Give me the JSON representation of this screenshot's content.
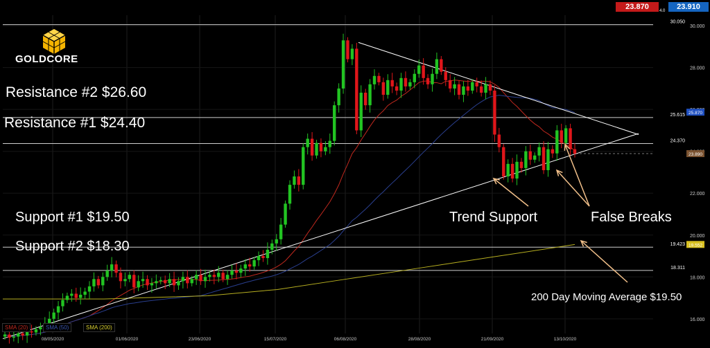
{
  "logo": {
    "text": "GOLDCORE"
  },
  "quotes": {
    "bid": "23.870",
    "ask": "23.910",
    "spread": "4.0"
  },
  "annotations": {
    "resistance2": "Resistance #2 $26.60",
    "resistance1": "Resistance #1 $24.40",
    "support1": "Support #1 $19.50",
    "support2": "Support #2 $18.30",
    "trend_support": "Trend Support",
    "false_breaks": "False Breaks",
    "ma200": "200 Day Moving Average $19.50"
  },
  "legend": {
    "sma20": "SMA (20)",
    "sma50": "SMA (50)",
    "sma200": "SMA (200)"
  },
  "colors": {
    "up": "#22c422",
    "down": "#e0161a",
    "sma20": "#c0281e",
    "sma50": "#2a3f8f",
    "sma200": "#b8b020",
    "arrow": "#f2c08a",
    "line": "#ffffff"
  },
  "chart_data": {
    "type": "candlestick",
    "title": "",
    "ylim": [
      15.3,
      30.5
    ],
    "y_ticks": [
      16,
      18,
      20,
      22,
      24,
      26,
      28,
      30
    ],
    "x_ticks": [
      "08/05/2020",
      "01/06/2020",
      "23/06/2020",
      "15/07/2020",
      "06/08/2020",
      "28/08/2020",
      "21/09/2020",
      "13/10/2020"
    ],
    "horizontal_levels": [
      {
        "label": "30.050",
        "value": 30.05
      },
      {
        "label": "25.615",
        "value": 25.615
      },
      {
        "label": "24.370",
        "value": 24.37
      },
      {
        "label": "19.423",
        "value": 19.423
      },
      {
        "label": "18.311",
        "value": 18.311
      }
    ],
    "price_tags": [
      {
        "label": "25.870",
        "value": 25.87,
        "color": "#1f4fbf"
      },
      {
        "label": "23.890",
        "value": 23.89,
        "color": "#7a5230"
      },
      {
        "label": "19.552",
        "value": 19.552,
        "color": "#d8c020"
      }
    ],
    "candles_close": [
      15.25,
      15.1,
      15.15,
      15.3,
      15.2,
      15.4,
      15.35,
      15.5,
      15.6,
      15.8,
      16.0,
      16.3,
      16.6,
      16.9,
      17.1,
      17.2,
      17.0,
      17.15,
      17.3,
      17.55,
      17.9,
      17.6,
      18.0,
      18.3,
      18.6,
      18.2,
      17.8,
      17.9,
      18.1,
      17.5,
      17.8,
      17.9,
      17.6,
      17.7,
      17.8,
      17.85,
      17.7,
      17.9,
      17.6,
      17.8,
      18.0,
      17.7,
      17.9,
      18.1,
      17.8,
      18.0,
      18.1,
      18.0,
      18.2,
      17.9,
      18.1,
      18.3,
      18.2,
      18.4,
      18.6,
      18.5,
      18.8,
      19.0,
      18.9,
      19.3,
      19.6,
      19.8,
      20.5,
      21.5,
      22.4,
      22.8,
      22.4,
      24.2,
      24.6,
      23.8,
      24.4,
      24.0,
      24.2,
      24.5,
      26.2,
      27.0,
      29.3,
      28.4,
      28.9,
      25.0,
      26.8,
      26.2,
      27.2,
      27.6,
      27.3,
      26.7,
      27.4,
      27.1,
      26.9,
      27.5,
      27.1,
      27.3,
      27.7,
      28.1,
      27.5,
      27.2,
      27.7,
      28.4,
      27.8,
      27.4,
      27.0,
      27.2,
      26.7,
      27.1,
      26.9,
      27.3,
      27.1,
      26.8,
      27.2,
      26.9,
      24.8,
      24.2,
      22.8,
      23.4,
      22.7,
      23.5,
      23.2,
      24.0,
      23.6,
      23.8,
      24.2,
      23.1,
      24.1,
      23.9,
      25.0,
      24.4,
      25.1,
      24.1,
      23.89
    ],
    "trendline_upper": {
      "from": "06/08/2020",
      "from_value": 29.2,
      "to": "end",
      "to_value": 24.8
    },
    "trendline_lower": {
      "from": "start",
      "from_value": 15.1,
      "to": "end",
      "to_value": 24.9
    },
    "series": [
      {
        "name": "SMA (20)"
      },
      {
        "name": "SMA (50)"
      },
      {
        "name": "SMA (200)"
      }
    ]
  }
}
